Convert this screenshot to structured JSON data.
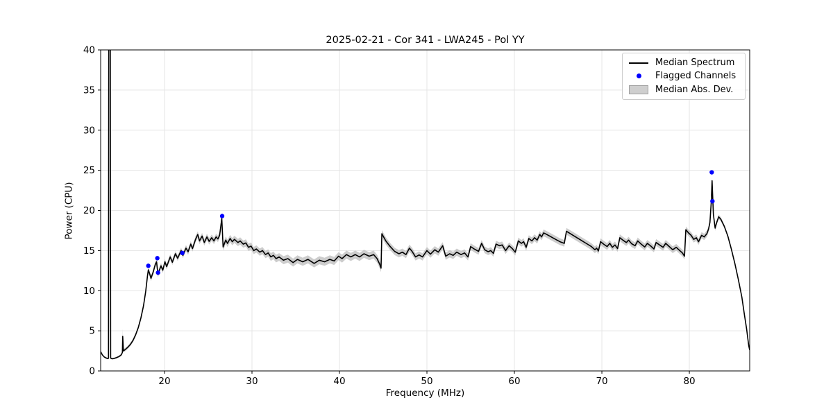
{
  "figure": {
    "title": "2025-02-21 - Cor 341 - LWA245 - Pol YY",
    "xlabel": "Frequency (MHz)",
    "ylabel": "Power (CPU)"
  },
  "legend": {
    "position": "upper right",
    "items": [
      {
        "label": "Median Spectrum",
        "type": "line",
        "color": "#000000"
      },
      {
        "label": "Flagged Channels",
        "type": "dot",
        "color": "#0000ff"
      },
      {
        "label": "Median Abs. Dev.",
        "type": "patch",
        "color": "#cfcfcf"
      }
    ]
  },
  "chart_data": {
    "type": "line",
    "title": "2025-02-21 - Cor 341 - LWA245 - Pol YY",
    "xlabel": "Frequency (MHz)",
    "ylabel": "Power (CPU)",
    "xlim": [
      12.7,
      86.9
    ],
    "ylim": [
      0,
      40
    ],
    "xticks": [
      20,
      30,
      40,
      50,
      60,
      70,
      80
    ],
    "yticks": [
      0,
      5,
      10,
      15,
      20,
      25,
      30,
      35,
      40
    ],
    "grid": true,
    "legend_position": "upper right",
    "colors": {
      "line": "#000000",
      "flagged": "#0000ff",
      "band": "#c0c0c0",
      "grid": "#e5e5e5",
      "spine": "#000000"
    },
    "note": "median spectrum points are [freq_MHz, power_CPU, median_abs_dev]; spike at 13.7 MHz is clipped above ylim",
    "series": [
      {
        "name": "Median Spectrum",
        "type": "line",
        "points": [
          [
            12.7,
            2.4,
            0.1
          ],
          [
            12.9,
            2.0,
            0.1
          ],
          [
            13.1,
            1.75,
            0.1
          ],
          [
            13.3,
            1.62,
            0.1
          ],
          [
            13.5,
            1.55,
            0.1
          ],
          [
            13.6,
            1.58,
            0.1
          ],
          [
            13.63,
            41.0,
            0.0
          ],
          [
            13.8,
            41.0,
            0.0
          ],
          [
            13.84,
            1.6,
            0.1
          ],
          [
            14.0,
            1.52,
            0.1
          ],
          [
            14.2,
            1.55,
            0.1
          ],
          [
            14.5,
            1.65,
            0.12
          ],
          [
            14.8,
            1.8,
            0.12
          ],
          [
            15.05,
            2.0,
            0.15
          ],
          [
            15.18,
            2.3,
            0.15
          ],
          [
            15.22,
            4.3,
            1.0
          ],
          [
            15.3,
            2.5,
            0.2
          ],
          [
            15.55,
            2.7,
            0.2
          ],
          [
            15.8,
            2.95,
            0.2
          ],
          [
            16.1,
            3.3,
            0.22
          ],
          [
            16.4,
            3.8,
            0.22
          ],
          [
            16.7,
            4.5,
            0.25
          ],
          [
            17.0,
            5.4,
            0.25
          ],
          [
            17.3,
            6.6,
            0.28
          ],
          [
            17.6,
            8.1,
            0.3
          ],
          [
            17.85,
            9.9,
            0.32
          ],
          [
            18.05,
            11.8,
            0.35
          ],
          [
            18.15,
            12.6,
            0.35
          ],
          [
            18.3,
            12.1,
            0.35
          ],
          [
            18.45,
            11.55,
            0.35
          ],
          [
            18.7,
            12.3,
            0.35
          ],
          [
            18.95,
            13.3,
            0.35
          ],
          [
            19.1,
            13.6,
            0.35
          ],
          [
            19.25,
            12.0,
            0.35
          ],
          [
            19.4,
            12.5,
            0.35
          ],
          [
            19.6,
            13.1,
            0.35
          ],
          [
            19.8,
            12.55,
            0.35
          ],
          [
            20.05,
            13.6,
            0.35
          ],
          [
            20.25,
            13.0,
            0.35
          ],
          [
            20.65,
            14.2,
            0.35
          ],
          [
            20.9,
            13.55,
            0.35
          ],
          [
            21.25,
            14.6,
            0.35
          ],
          [
            21.5,
            14.05,
            0.35
          ],
          [
            21.9,
            15.0,
            0.35
          ],
          [
            22.1,
            14.4,
            0.35
          ],
          [
            22.45,
            15.3,
            0.38
          ],
          [
            22.7,
            14.85,
            0.38
          ],
          [
            23.0,
            15.8,
            0.38
          ],
          [
            23.2,
            15.25,
            0.38
          ],
          [
            23.55,
            16.4,
            0.4
          ],
          [
            23.8,
            17.0,
            0.4
          ],
          [
            24.0,
            16.2,
            0.4
          ],
          [
            24.3,
            16.8,
            0.4
          ],
          [
            24.55,
            16.0,
            0.4
          ],
          [
            24.85,
            16.7,
            0.4
          ],
          [
            25.1,
            16.15,
            0.4
          ],
          [
            25.4,
            16.6,
            0.4
          ],
          [
            25.65,
            16.2,
            0.4
          ],
          [
            25.9,
            16.7,
            0.4
          ],
          [
            26.1,
            16.45,
            0.4
          ],
          [
            26.3,
            16.9,
            0.4
          ],
          [
            26.55,
            19.0,
            0.45
          ],
          [
            26.7,
            15.45,
            0.45
          ],
          [
            27.0,
            16.3,
            0.45
          ],
          [
            27.2,
            15.9,
            0.45
          ],
          [
            27.5,
            16.5,
            0.45
          ],
          [
            27.75,
            16.1,
            0.45
          ],
          [
            28.0,
            16.4,
            0.45
          ],
          [
            28.4,
            16.0,
            0.45
          ],
          [
            28.65,
            16.2,
            0.45
          ],
          [
            29.0,
            15.8,
            0.45
          ],
          [
            29.3,
            15.95,
            0.45
          ],
          [
            29.6,
            15.4,
            0.45
          ],
          [
            29.9,
            15.55,
            0.45
          ],
          [
            30.2,
            15.0,
            0.45
          ],
          [
            30.5,
            15.2,
            0.45
          ],
          [
            30.9,
            14.8,
            0.45
          ],
          [
            31.2,
            15.0,
            0.45
          ],
          [
            31.55,
            14.5,
            0.45
          ],
          [
            31.85,
            14.7,
            0.45
          ],
          [
            32.15,
            14.2,
            0.48
          ],
          [
            32.45,
            14.4,
            0.48
          ],
          [
            32.75,
            14.0,
            0.48
          ],
          [
            33.1,
            14.2,
            0.48
          ],
          [
            33.6,
            13.8,
            0.5
          ],
          [
            34.1,
            14.0,
            0.5
          ],
          [
            34.7,
            13.5,
            0.5
          ],
          [
            35.2,
            13.9,
            0.5
          ],
          [
            35.8,
            13.6,
            0.5
          ],
          [
            36.4,
            13.9,
            0.5
          ],
          [
            37.1,
            13.4,
            0.5
          ],
          [
            37.7,
            13.8,
            0.5
          ],
          [
            38.3,
            13.6,
            0.5
          ],
          [
            38.9,
            13.9,
            0.5
          ],
          [
            39.4,
            13.7,
            0.5
          ],
          [
            39.9,
            14.3,
            0.5
          ],
          [
            40.3,
            14.0,
            0.5
          ],
          [
            40.8,
            14.5,
            0.5
          ],
          [
            41.3,
            14.2,
            0.5
          ],
          [
            41.8,
            14.5,
            0.5
          ],
          [
            42.3,
            14.2,
            0.5
          ],
          [
            42.8,
            14.6,
            0.5
          ],
          [
            43.4,
            14.3,
            0.5
          ],
          [
            43.9,
            14.5,
            0.5
          ],
          [
            44.3,
            14.0,
            0.5
          ],
          [
            44.6,
            13.3,
            0.5
          ],
          [
            44.75,
            12.8,
            0.5
          ],
          [
            44.85,
            17.1,
            0.45
          ],
          [
            45.3,
            16.2,
            0.45
          ],
          [
            45.8,
            15.5,
            0.45
          ],
          [
            46.3,
            14.9,
            0.45
          ],
          [
            46.8,
            14.6,
            0.45
          ],
          [
            47.2,
            14.8,
            0.45
          ],
          [
            47.6,
            14.5,
            0.45
          ],
          [
            48.0,
            15.3,
            0.45
          ],
          [
            48.3,
            14.9,
            0.45
          ],
          [
            48.7,
            14.2,
            0.45
          ],
          [
            49.1,
            14.45,
            0.45
          ],
          [
            49.5,
            14.2,
            0.45
          ],
          [
            50.0,
            15.0,
            0.45
          ],
          [
            50.4,
            14.55,
            0.45
          ],
          [
            50.9,
            15.1,
            0.45
          ],
          [
            51.3,
            14.8,
            0.45
          ],
          [
            51.8,
            15.6,
            0.45
          ],
          [
            52.15,
            14.3,
            0.45
          ],
          [
            52.6,
            14.6,
            0.45
          ],
          [
            53.0,
            14.4,
            0.45
          ],
          [
            53.4,
            14.8,
            0.45
          ],
          [
            53.9,
            14.5,
            0.45
          ],
          [
            54.3,
            14.7,
            0.45
          ],
          [
            54.7,
            14.2,
            0.45
          ],
          [
            55.0,
            15.5,
            0.42
          ],
          [
            55.4,
            15.2,
            0.42
          ],
          [
            55.9,
            14.9,
            0.42
          ],
          [
            56.25,
            15.9,
            0.42
          ],
          [
            56.6,
            15.1,
            0.42
          ],
          [
            57.0,
            14.85,
            0.42
          ],
          [
            57.3,
            15.0,
            0.42
          ],
          [
            57.6,
            14.65,
            0.42
          ],
          [
            57.9,
            15.8,
            0.42
          ],
          [
            58.3,
            15.6,
            0.42
          ],
          [
            58.6,
            15.7,
            0.42
          ],
          [
            59.0,
            15.0,
            0.42
          ],
          [
            59.4,
            15.6,
            0.42
          ],
          [
            59.8,
            15.2,
            0.42
          ],
          [
            60.1,
            14.8,
            0.42
          ],
          [
            60.45,
            16.2,
            0.42
          ],
          [
            60.8,
            15.9,
            0.42
          ],
          [
            61.05,
            16.1,
            0.42
          ],
          [
            61.35,
            15.4,
            0.42
          ],
          [
            61.65,
            16.5,
            0.42
          ],
          [
            62.0,
            16.2,
            0.42
          ],
          [
            62.3,
            16.6,
            0.42
          ],
          [
            62.6,
            16.3,
            0.42
          ],
          [
            62.9,
            17.0,
            0.42
          ],
          [
            63.1,
            16.7,
            0.42
          ],
          [
            63.35,
            17.2,
            0.42
          ],
          [
            63.7,
            17.0,
            0.42
          ],
          [
            64.2,
            16.7,
            0.42
          ],
          [
            64.7,
            16.4,
            0.42
          ],
          [
            65.2,
            16.1,
            0.42
          ],
          [
            65.7,
            15.9,
            0.42
          ],
          [
            65.95,
            17.4,
            0.42
          ],
          [
            66.4,
            17.1,
            0.42
          ],
          [
            67.0,
            16.7,
            0.42
          ],
          [
            67.6,
            16.3,
            0.42
          ],
          [
            68.2,
            15.9,
            0.42
          ],
          [
            68.8,
            15.5,
            0.42
          ],
          [
            69.2,
            15.1,
            0.42
          ],
          [
            69.4,
            15.3,
            0.42
          ],
          [
            69.6,
            14.95,
            0.42
          ],
          [
            69.85,
            16.1,
            0.42
          ],
          [
            70.2,
            15.8,
            0.42
          ],
          [
            70.6,
            15.5,
            0.42
          ],
          [
            70.9,
            15.9,
            0.42
          ],
          [
            71.2,
            15.4,
            0.42
          ],
          [
            71.5,
            15.7,
            0.42
          ],
          [
            71.8,
            15.25,
            0.42
          ],
          [
            72.05,
            16.6,
            0.42
          ],
          [
            72.4,
            16.3,
            0.42
          ],
          [
            72.8,
            16.0,
            0.42
          ],
          [
            73.05,
            16.3,
            0.42
          ],
          [
            73.4,
            15.85,
            0.42
          ],
          [
            73.8,
            15.6,
            0.42
          ],
          [
            74.1,
            16.2,
            0.42
          ],
          [
            74.5,
            15.8,
            0.42
          ],
          [
            74.9,
            15.45,
            0.42
          ],
          [
            75.2,
            15.9,
            0.42
          ],
          [
            75.6,
            15.55,
            0.42
          ],
          [
            75.95,
            15.2,
            0.42
          ],
          [
            76.2,
            16.0,
            0.42
          ],
          [
            76.6,
            15.7,
            0.42
          ],
          [
            77.0,
            15.4,
            0.42
          ],
          [
            77.3,
            15.9,
            0.42
          ],
          [
            77.7,
            15.5,
            0.42
          ],
          [
            78.1,
            15.1,
            0.42
          ],
          [
            78.5,
            15.4,
            0.42
          ],
          [
            78.9,
            15.0,
            0.42
          ],
          [
            79.2,
            14.7,
            0.42
          ],
          [
            79.45,
            14.3,
            0.42
          ],
          [
            79.6,
            17.6,
            0.4
          ],
          [
            79.9,
            17.2,
            0.4
          ],
          [
            80.2,
            16.9,
            0.4
          ],
          [
            80.5,
            16.4,
            0.4
          ],
          [
            80.8,
            16.6,
            0.4
          ],
          [
            81.05,
            16.1,
            0.4
          ],
          [
            81.4,
            16.9,
            0.4
          ],
          [
            81.7,
            16.7,
            0.4
          ],
          [
            82.0,
            17.1,
            0.4
          ],
          [
            82.2,
            17.7,
            0.4
          ],
          [
            82.35,
            18.5,
            0.4
          ],
          [
            82.5,
            21.0,
            0.35
          ],
          [
            82.6,
            23.7,
            0.35
          ],
          [
            82.75,
            19.5,
            0.35
          ],
          [
            82.95,
            17.8,
            0.35
          ],
          [
            83.1,
            18.4,
            0.3
          ],
          [
            83.35,
            19.2,
            0.3
          ],
          [
            83.6,
            18.9,
            0.25
          ],
          [
            84.0,
            18.0,
            0.22
          ],
          [
            84.4,
            16.8,
            0.2
          ],
          [
            84.8,
            15.2,
            0.18
          ],
          [
            85.2,
            13.4,
            0.15
          ],
          [
            85.6,
            11.4,
            0.15
          ],
          [
            86.0,
            9.2,
            0.12
          ],
          [
            86.3,
            7.0,
            0.12
          ],
          [
            86.55,
            5.2,
            0.1
          ],
          [
            86.7,
            3.9,
            0.1
          ],
          [
            86.8,
            3.1,
            0.1
          ],
          [
            86.9,
            2.6,
            0.1
          ]
        ]
      },
      {
        "name": "Flagged Channels",
        "type": "scatter",
        "points": [
          [
            18.15,
            13.1
          ],
          [
            19.18,
            14.05
          ],
          [
            19.26,
            12.25
          ],
          [
            22.04,
            14.7
          ],
          [
            26.59,
            19.3
          ],
          [
            82.56,
            24.75
          ],
          [
            82.64,
            21.15
          ]
        ]
      }
    ]
  }
}
